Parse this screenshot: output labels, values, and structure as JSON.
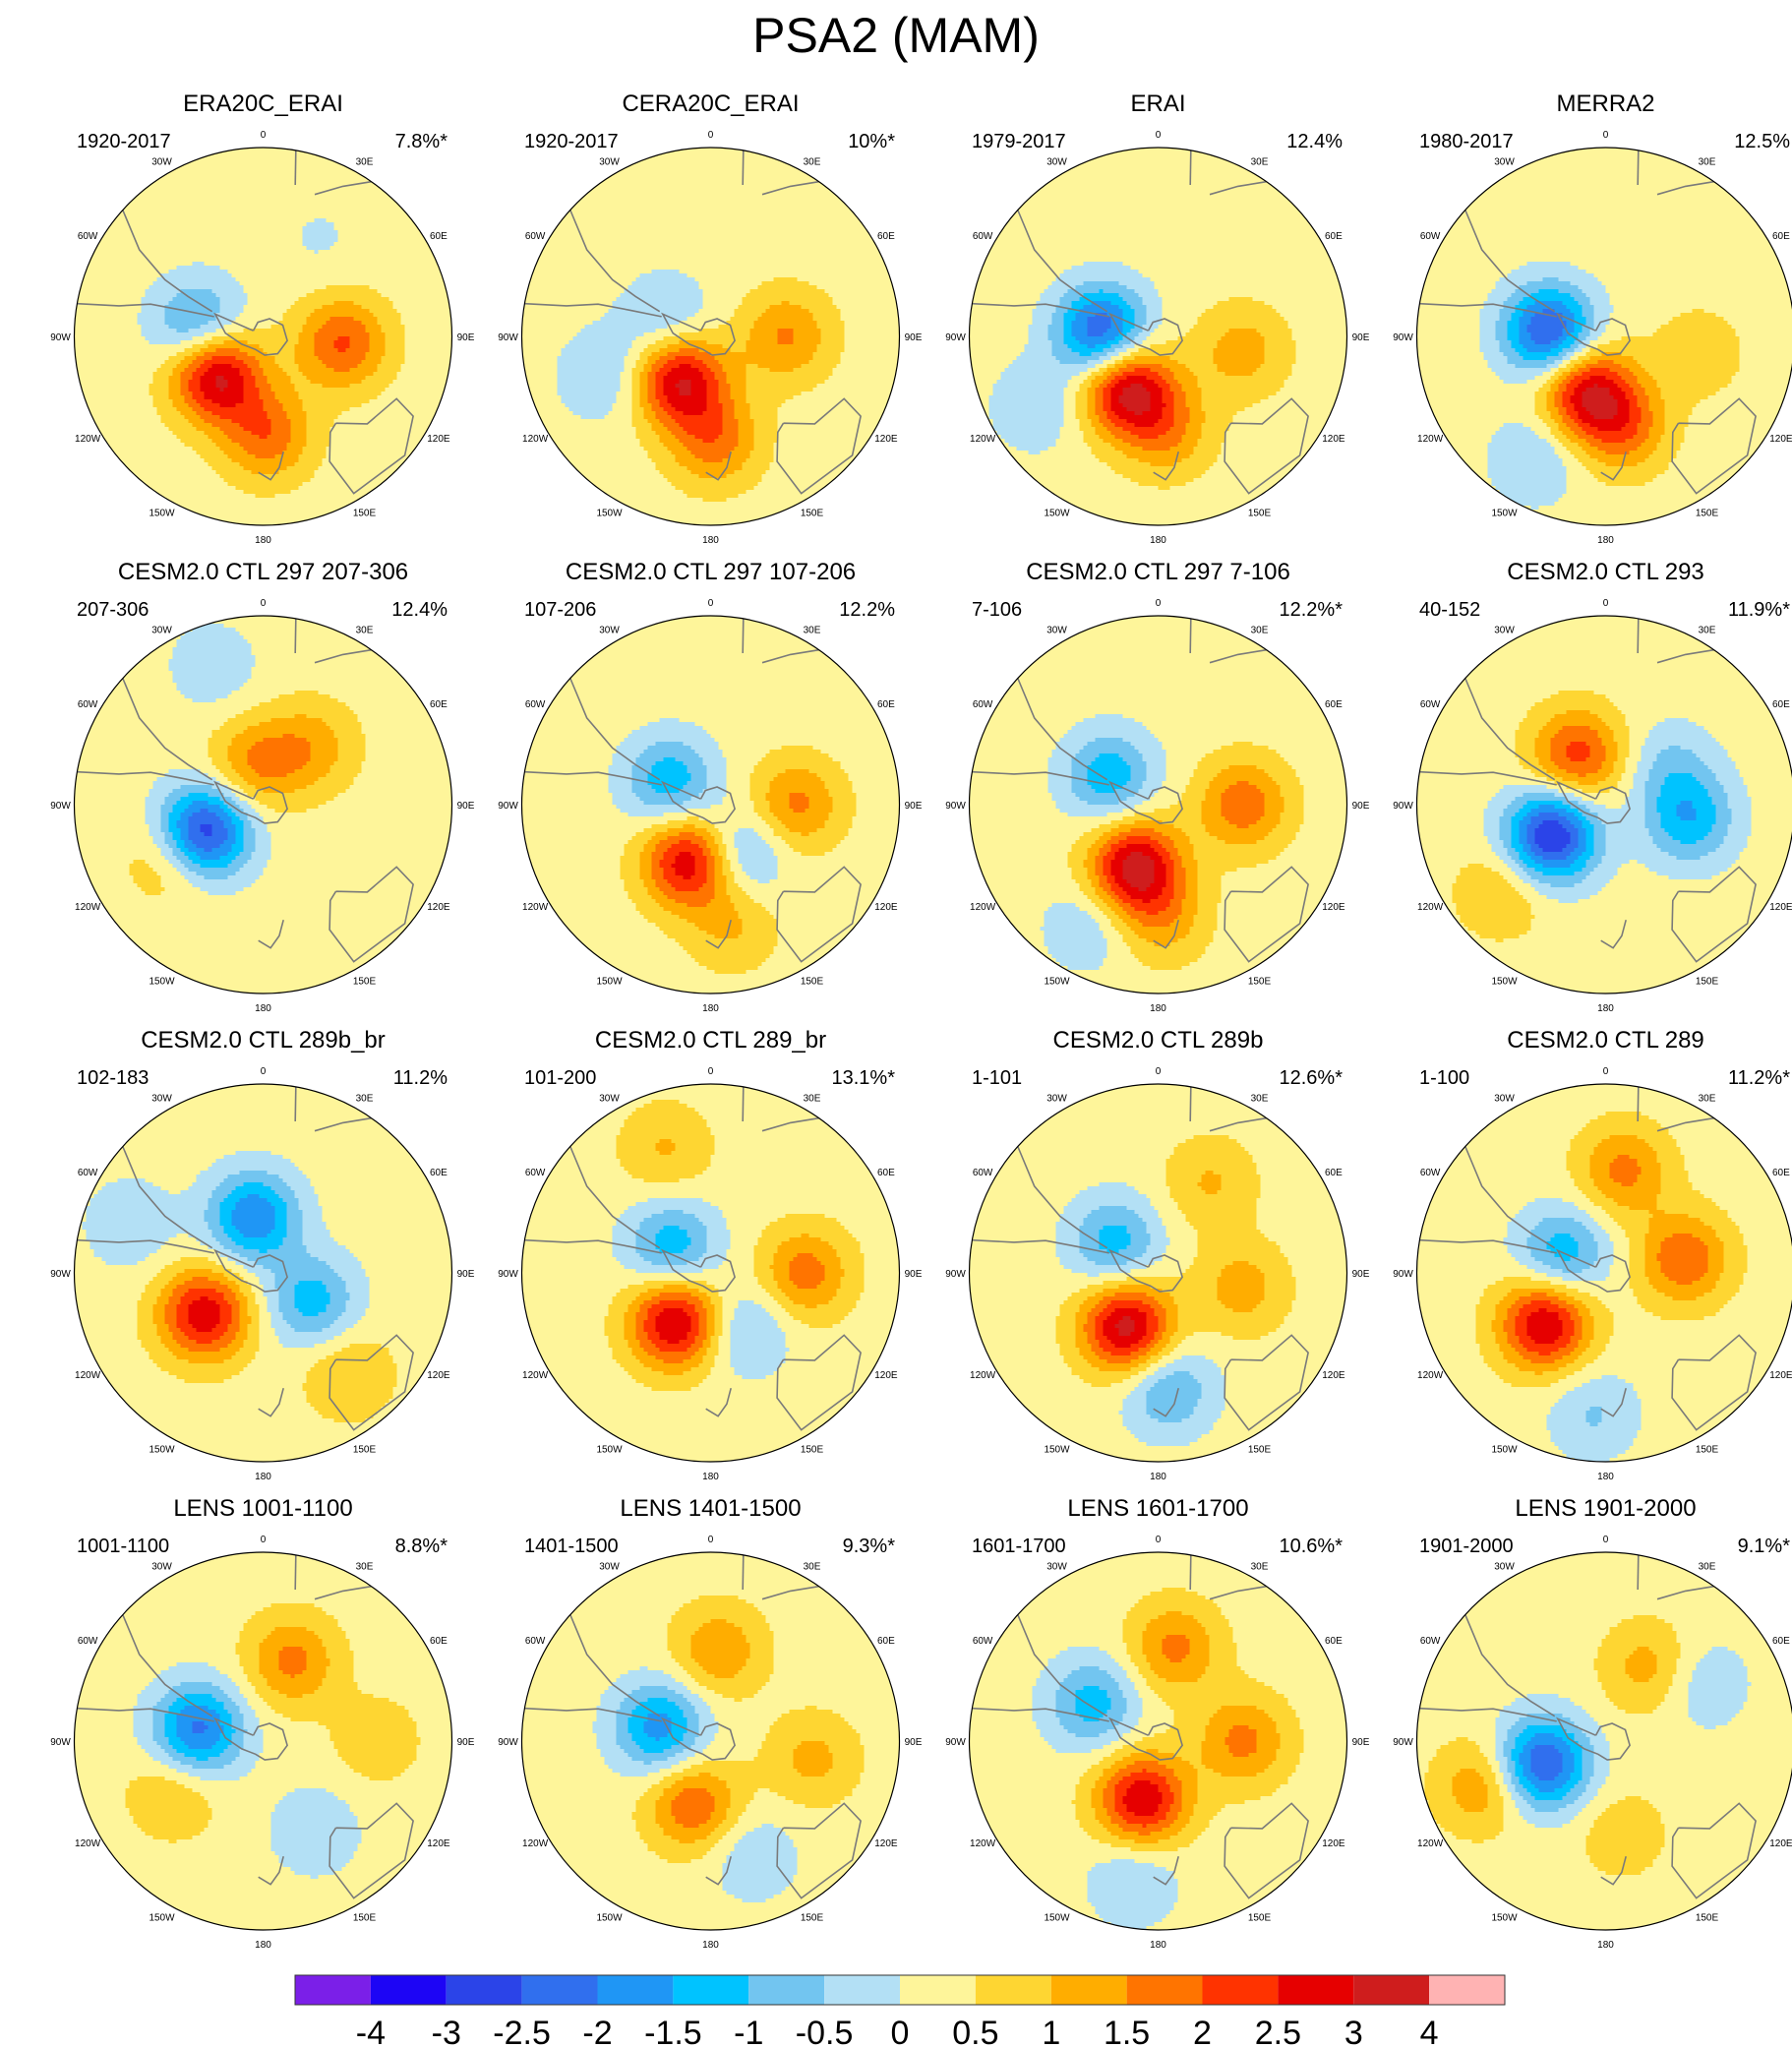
{
  "title": "PSA2 (MAM)",
  "chart_data": {
    "type": "heatmap",
    "projection": "south polar stereographic",
    "longitude_labels": [
      "0",
      "30E",
      "60E",
      "90E",
      "120E",
      "150E",
      "180",
      "150W",
      "120W",
      "90W",
      "60W",
      "30W"
    ],
    "panels": [
      {
        "title": "ERA20C_ERAI",
        "period": "1920-2017",
        "variance": "7.8%*",
        "centers": [
          {
            "lon": -130,
            "r": 0.32,
            "value": 3.0
          },
          {
            "lon": 178,
            "r": 0.52,
            "value": 1.6
          },
          {
            "lon": 95,
            "r": 0.42,
            "value": 1.8
          },
          {
            "lon": -80,
            "r": 0.35,
            "value": -1.6
          },
          {
            "lon": 30,
            "r": 0.6,
            "value": -0.3
          }
        ]
      },
      {
        "title": "CERA20C_ERAI",
        "period": "1920-2017",
        "variance": "10%*",
        "centers": [
          {
            "lon": -145,
            "r": 0.28,
            "value": 2.8
          },
          {
            "lon": 178,
            "r": 0.55,
            "value": 1.5
          },
          {
            "lon": 90,
            "r": 0.4,
            "value": 1.3
          },
          {
            "lon": -110,
            "r": 0.6,
            "value": -0.8
          },
          {
            "lon": -70,
            "r": 0.25,
            "value": -0.9
          }
        ]
      },
      {
        "title": "ERAI",
        "period": "1979-2017",
        "variance": "12.4%",
        "centers": [
          {
            "lon": -150,
            "r": 0.32,
            "value": 3.0
          },
          {
            "lon": 175,
            "r": 0.5,
            "value": 1.2
          },
          {
            "lon": 100,
            "r": 0.45,
            "value": 1.0
          },
          {
            "lon": -85,
            "r": 0.3,
            "value": -2.8
          },
          {
            "lon": -120,
            "r": 0.75,
            "value": -0.7
          }
        ]
      },
      {
        "title": "MERRA2",
        "period": "1980-2017",
        "variance": "12.5%",
        "centers": [
          {
            "lon": -160,
            "r": 0.3,
            "value": 2.6
          },
          {
            "lon": 170,
            "r": 0.48,
            "value": 1.6
          },
          {
            "lon": 100,
            "r": 0.5,
            "value": 0.6
          },
          {
            "lon": -85,
            "r": 0.3,
            "value": -2.9
          },
          {
            "lon": -150,
            "r": 0.75,
            "value": -0.8
          }
        ]
      },
      {
        "title": "CESM2.0 CTL 297 207-306",
        "period": "207-306",
        "variance": "12.4%",
        "centers": [
          {
            "lon": -115,
            "r": 0.35,
            "value": -3.3
          },
          {
            "lon": -120,
            "r": 0.55,
            "value": 1.0
          },
          {
            "lon": -10,
            "r": 0.22,
            "value": 1.3
          },
          {
            "lon": 40,
            "r": 0.4,
            "value": 1.0
          },
          {
            "lon": -20,
            "r": 0.78,
            "value": -0.6
          }
        ]
      },
      {
        "title": "CESM2.0 CTL 297 107-206",
        "period": "107-206",
        "variance": "12.2%",
        "centers": [
          {
            "lon": -160,
            "r": 0.32,
            "value": 2.8
          },
          {
            "lon": -60,
            "r": 0.25,
            "value": -1.6
          },
          {
            "lon": 90,
            "r": 0.45,
            "value": 1.4
          },
          {
            "lon": 150,
            "r": 0.3,
            "value": -1.3
          },
          {
            "lon": 170,
            "r": 0.65,
            "value": 0.8
          }
        ]
      },
      {
        "title": "CESM2.0 CTL 297 7-106",
        "period": "7-106",
        "variance": "12.2%*",
        "centers": [
          {
            "lon": -160,
            "r": 0.35,
            "value": 3.0
          },
          {
            "lon": -60,
            "r": 0.3,
            "value": -1.6
          },
          {
            "lon": 90,
            "r": 0.45,
            "value": 1.6
          },
          {
            "lon": 178,
            "r": 0.6,
            "value": 1.0
          },
          {
            "lon": -150,
            "r": 0.75,
            "value": -0.7
          }
        ]
      },
      {
        "title": "CESM2.0 CTL 293",
        "period": "40-152",
        "variance": "11.9%*",
        "centers": [
          {
            "lon": -120,
            "r": 0.33,
            "value": -3.3
          },
          {
            "lon": -30,
            "r": 0.3,
            "value": 2.0
          },
          {
            "lon": 100,
            "r": 0.45,
            "value": -1.6
          },
          {
            "lon": -130,
            "r": 0.72,
            "value": 0.8
          },
          {
            "lon": 60,
            "r": 0.4,
            "value": -0.8
          }
        ]
      },
      {
        "title": "CESM2.0 CTL 289b_br",
        "period": "102-183",
        "variance": "11.2%",
        "centers": [
          {
            "lon": -125,
            "r": 0.38,
            "value": 2.6
          },
          {
            "lon": -10,
            "r": 0.3,
            "value": -2.2
          },
          {
            "lon": 120,
            "r": 0.3,
            "value": -1.5
          },
          {
            "lon": -70,
            "r": 0.75,
            "value": -0.7
          },
          {
            "lon": 140,
            "r": 0.7,
            "value": 0.8
          }
        ]
      },
      {
        "title": "CESM2.0 CTL 289_br",
        "period": "101-200",
        "variance": "13.1%*",
        "centers": [
          {
            "lon": -145,
            "r": 0.32,
            "value": 2.9
          },
          {
            "lon": -55,
            "r": 0.25,
            "value": -1.6
          },
          {
            "lon": 90,
            "r": 0.5,
            "value": 1.5
          },
          {
            "lon": 150,
            "r": 0.35,
            "value": -1.0
          },
          {
            "lon": -20,
            "r": 0.7,
            "value": 0.8
          }
        ]
      },
      {
        "title": "CESM2.0 CTL 289b",
        "period": "1-101",
        "variance": "12.6%*",
        "centers": [
          {
            "lon": -150,
            "r": 0.33,
            "value": 3.0
          },
          {
            "lon": -55,
            "r": 0.28,
            "value": -1.5
          },
          {
            "lon": 100,
            "r": 0.45,
            "value": 1.0
          },
          {
            "lon": 175,
            "r": 0.62,
            "value": -1.3
          },
          {
            "lon": 30,
            "r": 0.55,
            "value": 0.8
          }
        ]
      },
      {
        "title": "CESM2.0 CTL 289",
        "period": "1-100",
        "variance": "11.2%*",
        "centers": [
          {
            "lon": -130,
            "r": 0.42,
            "value": 2.8
          },
          {
            "lon": -65,
            "r": 0.25,
            "value": -1.6
          },
          {
            "lon": 80,
            "r": 0.42,
            "value": 1.7
          },
          {
            "lon": 10,
            "r": 0.55,
            "value": 1.4
          },
          {
            "lon": -175,
            "r": 0.75,
            "value": -0.8
          }
        ]
      },
      {
        "title": "LENS 1001-1100",
        "period": "1001-1100",
        "variance": "8.8%*",
        "centers": [
          {
            "lon": -80,
            "r": 0.35,
            "value": -2.4
          },
          {
            "lon": 20,
            "r": 0.45,
            "value": 1.4
          },
          {
            "lon": -120,
            "r": 0.55,
            "value": 0.8
          },
          {
            "lon": 150,
            "r": 0.55,
            "value": -0.7
          },
          {
            "lon": 90,
            "r": 0.6,
            "value": 0.6
          }
        ]
      },
      {
        "title": "LENS 1401-1500",
        "period": "1401-1500",
        "variance": "9.3%*",
        "centers": [
          {
            "lon": -75,
            "r": 0.28,
            "value": -2.0
          },
          {
            "lon": -165,
            "r": 0.35,
            "value": 1.7
          },
          {
            "lon": 5,
            "r": 0.48,
            "value": 1.2
          },
          {
            "lon": 100,
            "r": 0.55,
            "value": 0.9
          },
          {
            "lon": 160,
            "r": 0.65,
            "value": -0.7
          }
        ]
      },
      {
        "title": "LENS 1601-1700",
        "period": "1601-1700",
        "variance": "10.6%*",
        "centers": [
          {
            "lon": -165,
            "r": 0.32,
            "value": 2.7
          },
          {
            "lon": 10,
            "r": 0.5,
            "value": 1.4
          },
          {
            "lon": 90,
            "r": 0.45,
            "value": 1.4
          },
          {
            "lon": -60,
            "r": 0.4,
            "value": -1.5
          },
          {
            "lon": -170,
            "r": 0.75,
            "value": -0.8
          }
        ]
      },
      {
        "title": "LENS 1901-2000",
        "period": "1901-2000",
        "variance": "9.1%*",
        "centers": [
          {
            "lon": -110,
            "r": 0.35,
            "value": -2.8
          },
          {
            "lon": 30,
            "r": 0.45,
            "value": 1.0
          },
          {
            "lon": -110,
            "r": 0.7,
            "value": 1.2
          },
          {
            "lon": 60,
            "r": 0.6,
            "value": -0.7
          },
          {
            "lon": 170,
            "r": 0.5,
            "value": 0.6
          }
        ]
      }
    ],
    "colorbar": {
      "labels": [
        "-4",
        "-3",
        "-2.5",
        "-2",
        "-1.5",
        "-1",
        "-0.5",
        "0",
        "0.5",
        "1",
        "1.5",
        "2",
        "2.5",
        "3",
        "4"
      ],
      "levels": [
        -4,
        -3,
        -2.5,
        -2,
        -1.5,
        -1,
        -0.5,
        0,
        0.5,
        1,
        1.5,
        2,
        2.5,
        3,
        4
      ],
      "colors": [
        "#7b1fe8",
        "#1d05f5",
        "#2b44e8",
        "#306fee",
        "#1f96f5",
        "#00c3ff",
        "#72c5f0",
        "#b3e0f5",
        "#fef59a",
        "#fed632",
        "#ffad00",
        "#ff7400",
        "#ff3300",
        "#e60000",
        "#cf1d1d",
        "#ffb3b3"
      ]
    },
    "coast_color": "#7a7a7a"
  }
}
